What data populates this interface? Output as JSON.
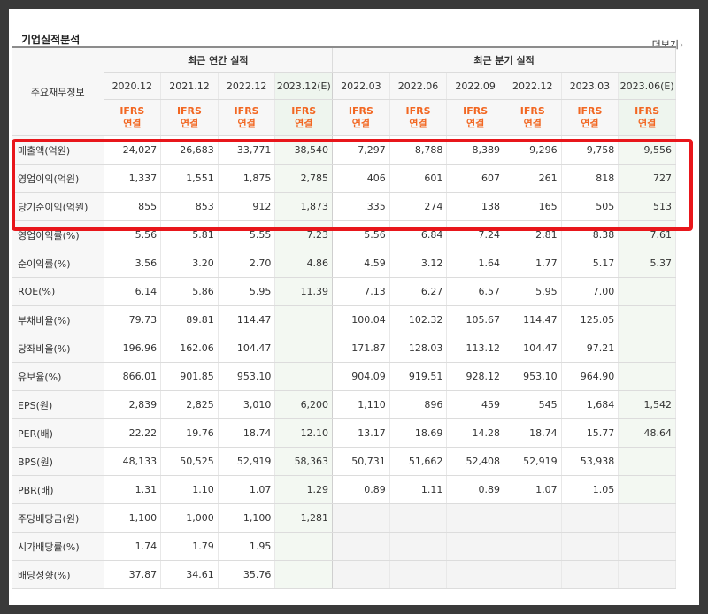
{
  "section_title": "기업실적분석",
  "more_link": "더보기",
  "header": {
    "label_column": "주요재무정보",
    "annual_group": "최근 연간 실적",
    "quarter_group": "최근 분기 실적",
    "annual_periods": [
      "2020.12",
      "2021.12",
      "2022.12",
      "2023.12(E)"
    ],
    "quarter_periods": [
      "2022.03",
      "2022.06",
      "2022.09",
      "2022.12",
      "2023.03",
      "2023.06(E)"
    ],
    "accounting_top": "IFRS",
    "accounting_bottom": "연결"
  },
  "rows": [
    {
      "label": "매출액(억원)",
      "values": [
        "24,027",
        "26,683",
        "33,771",
        "38,540",
        "7,297",
        "8,788",
        "8,389",
        "9,296",
        "9,758",
        "9,556"
      ]
    },
    {
      "label": "영업이익(억원)",
      "values": [
        "1,337",
        "1,551",
        "1,875",
        "2,785",
        "406",
        "601",
        "607",
        "261",
        "818",
        "727"
      ]
    },
    {
      "label": "당기순이익(억원)",
      "values": [
        "855",
        "853",
        "912",
        "1,873",
        "335",
        "274",
        "138",
        "165",
        "505",
        "513"
      ]
    },
    {
      "label": "영업이익률(%)",
      "values": [
        "5.56",
        "5.81",
        "5.55",
        "7.23",
        "5.56",
        "6.84",
        "7.24",
        "2.81",
        "8.38",
        "7.61"
      ]
    },
    {
      "label": "순이익률(%)",
      "values": [
        "3.56",
        "3.20",
        "2.70",
        "4.86",
        "4.59",
        "3.12",
        "1.64",
        "1.77",
        "5.17",
        "5.37"
      ]
    },
    {
      "label": "ROE(%)",
      "values": [
        "6.14",
        "5.86",
        "5.95",
        "11.39",
        "7.13",
        "6.27",
        "6.57",
        "5.95",
        "7.00",
        ""
      ]
    },
    {
      "label": "부채비율(%)",
      "values": [
        "79.73",
        "89.81",
        "114.47",
        "",
        "100.04",
        "102.32",
        "105.67",
        "114.47",
        "125.05",
        ""
      ]
    },
    {
      "label": "당좌비율(%)",
      "values": [
        "196.96",
        "162.06",
        "104.47",
        "",
        "171.87",
        "128.03",
        "113.12",
        "104.47",
        "97.21",
        ""
      ]
    },
    {
      "label": "유보율(%)",
      "values": [
        "866.01",
        "901.85",
        "953.10",
        "",
        "904.09",
        "919.51",
        "928.12",
        "953.10",
        "964.90",
        ""
      ]
    },
    {
      "label": "EPS(원)",
      "values": [
        "2,839",
        "2,825",
        "3,010",
        "6,200",
        "1,110",
        "896",
        "459",
        "545",
        "1,684",
        "1,542"
      ]
    },
    {
      "label": "PER(배)",
      "values": [
        "22.22",
        "19.76",
        "18.74",
        "12.10",
        "13.17",
        "18.69",
        "14.28",
        "18.74",
        "15.77",
        "48.64"
      ]
    },
    {
      "label": "BPS(원)",
      "values": [
        "48,133",
        "50,525",
        "52,919",
        "58,363",
        "50,731",
        "51,662",
        "52,408",
        "52,919",
        "53,938",
        ""
      ]
    },
    {
      "label": "PBR(배)",
      "values": [
        "1.31",
        "1.10",
        "1.07",
        "1.29",
        "0.89",
        "1.11",
        "0.89",
        "1.07",
        "1.05",
        ""
      ]
    },
    {
      "label": "주당배당금(원)",
      "values": [
        "1,100",
        "1,000",
        "1,100",
        "1,281",
        "",
        "",
        "",
        "",
        "",
        ""
      ]
    },
    {
      "label": "시가배당률(%)",
      "values": [
        "1.74",
        "1.79",
        "1.95",
        "",
        "",
        "",
        "",
        "",
        "",
        ""
      ]
    },
    {
      "label": "배당성향(%)",
      "values": [
        "37.87",
        "34.61",
        "35.76",
        "",
        "",
        "",
        "",
        "",
        "",
        ""
      ]
    }
  ],
  "colors": {
    "accounting_text": "#f26722",
    "highlight_box": "#e8161b",
    "estimate_column": "#f3f8f2",
    "outer_background": "#3a3a3a"
  }
}
